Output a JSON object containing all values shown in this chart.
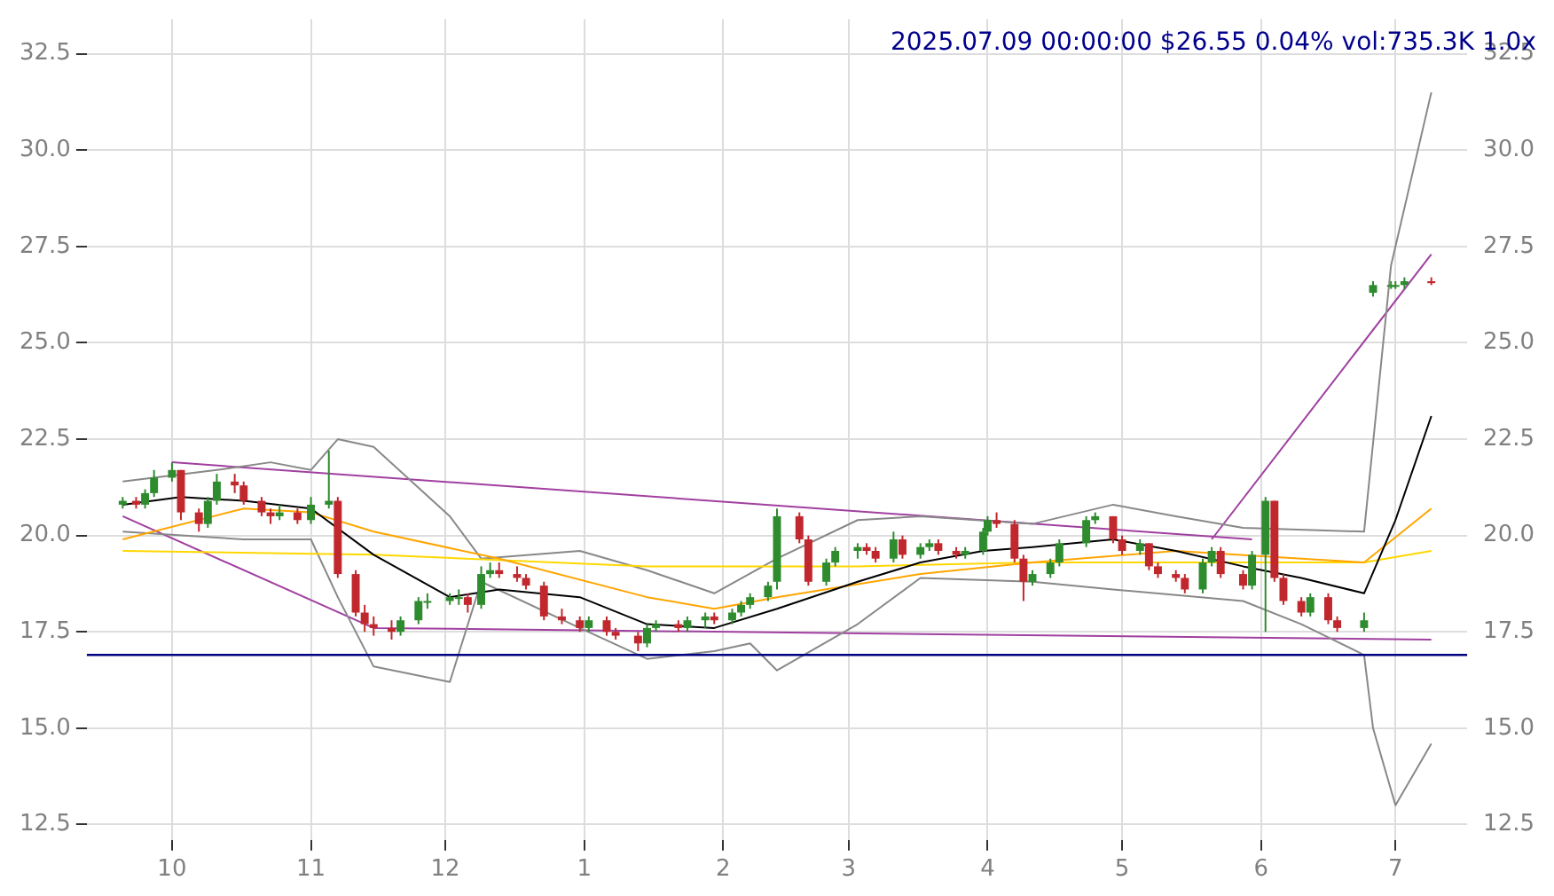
{
  "chart_data": {
    "type": "candlestick",
    "title": "2025.07.09 00:00:00 $26.55 0.04% vol:735.3K 1.0x",
    "x": [
      "2024-09-20",
      "2024-09-23",
      "2024-09-25",
      "2024-09-27",
      "2024-10-01",
      "2024-10-03",
      "2024-10-07",
      "2024-10-09",
      "2024-10-11",
      "2024-10-15",
      "2024-10-17",
      "2024-10-21",
      "2024-10-23",
      "2024-10-25",
      "2024-10-29",
      "2024-11-01",
      "2024-11-05",
      "2024-11-07",
      "2024-11-11",
      "2024-11-13",
      "2024-11-15",
      "2024-11-19",
      "2024-11-21",
      "2024-11-25",
      "2024-11-27",
      "2024-12-02",
      "2024-12-04",
      "2024-12-06",
      "2024-12-09",
      "2024-12-11",
      "2024-12-13",
      "2024-12-17",
      "2024-12-19",
      "2024-12-23",
      "2024-12-27",
      "2024-12-31",
      "2025-01-02",
      "2025-01-06",
      "2025-01-08",
      "2025-01-13",
      "2025-01-15",
      "2025-01-17",
      "2025-01-22",
      "2025-01-24",
      "2025-01-28",
      "2025-01-30",
      "2025-02-03",
      "2025-02-05",
      "2025-02-07",
      "2025-02-11",
      "2025-02-13",
      "2025-02-18",
      "2025-02-20",
      "2025-02-24",
      "2025-02-26",
      "2025-03-03",
      "2025-03-05",
      "2025-03-07",
      "2025-03-11",
      "2025-03-13",
      "2025-03-17",
      "2025-03-19",
      "2025-03-21",
      "2025-03-25",
      "2025-03-27",
      "2025-03-31",
      "2025-04-01",
      "2025-04-03",
      "2025-04-07",
      "2025-04-09",
      "2025-04-11",
      "2025-04-15",
      "2025-04-17",
      "2025-04-23",
      "2025-04-25",
      "2025-04-29",
      "2025-05-01",
      "2025-05-05",
      "2025-05-07",
      "2025-05-09",
      "2025-05-13",
      "2025-05-15",
      "2025-05-19",
      "2025-05-21",
      "2025-05-23",
      "2025-05-28",
      "2025-05-30",
      "2025-06-02",
      "2025-06-04",
      "2025-06-06",
      "2025-06-10",
      "2025-06-12",
      "2025-06-16",
      "2025-06-18",
      "2025-06-24",
      "2025-06-26",
      "2025-06-30",
      "2025-07-01",
      "2025-07-03",
      "2025-07-09"
    ],
    "ohlc": [
      [
        20.8,
        21.0,
        20.7,
        20.9
      ],
      [
        20.9,
        21.0,
        20.7,
        20.8
      ],
      [
        20.8,
        21.2,
        20.7,
        21.1
      ],
      [
        21.1,
        21.7,
        21.0,
        21.5
      ],
      [
        21.5,
        21.9,
        21.4,
        21.7
      ],
      [
        21.7,
        21.7,
        20.4,
        20.6
      ],
      [
        20.6,
        20.7,
        20.1,
        20.3
      ],
      [
        20.3,
        21.0,
        20.2,
        20.9
      ],
      [
        20.9,
        21.6,
        20.8,
        21.4
      ],
      [
        21.4,
        21.6,
        21.1,
        21.3
      ],
      [
        21.3,
        21.4,
        20.8,
        20.9
      ],
      [
        20.9,
        21.0,
        20.5,
        20.6
      ],
      [
        20.6,
        20.7,
        20.3,
        20.5
      ],
      [
        20.5,
        20.8,
        20.4,
        20.6
      ],
      [
        20.6,
        20.7,
        20.3,
        20.4
      ],
      [
        20.4,
        21.0,
        20.3,
        20.8
      ],
      [
        20.8,
        22.2,
        20.7,
        20.9
      ],
      [
        20.9,
        21.0,
        18.9,
        19.0
      ],
      [
        19.0,
        19.1,
        17.9,
        18.0
      ],
      [
        18.0,
        18.2,
        17.5,
        17.7
      ],
      [
        17.7,
        17.9,
        17.4,
        17.6
      ],
      [
        17.6,
        17.8,
        17.3,
        17.5
      ],
      [
        17.5,
        17.9,
        17.4,
        17.8
      ],
      [
        17.8,
        18.4,
        17.7,
        18.3
      ],
      [
        18.3,
        18.5,
        18.1,
        18.3
      ],
      [
        18.3,
        18.5,
        18.2,
        18.4
      ],
      [
        18.4,
        18.6,
        18.2,
        18.4
      ],
      [
        18.4,
        18.5,
        18.0,
        18.2
      ],
      [
        18.2,
        19.2,
        18.1,
        19.0
      ],
      [
        19.0,
        19.3,
        18.9,
        19.1
      ],
      [
        19.1,
        19.3,
        18.9,
        19.0
      ],
      [
        19.0,
        19.2,
        18.8,
        18.9
      ],
      [
        18.9,
        19.0,
        18.6,
        18.7
      ],
      [
        18.7,
        18.8,
        17.8,
        17.9
      ],
      [
        17.9,
        18.1,
        17.7,
        17.8
      ],
      [
        17.8,
        17.9,
        17.5,
        17.6
      ],
      [
        17.6,
        17.9,
        17.5,
        17.8
      ],
      [
        17.8,
        17.9,
        17.4,
        17.5
      ],
      [
        17.5,
        17.6,
        17.3,
        17.4
      ],
      [
        17.4,
        17.5,
        17.0,
        17.2
      ],
      [
        17.2,
        17.7,
        17.1,
        17.6
      ],
      [
        17.6,
        17.8,
        17.5,
        17.7
      ],
      [
        17.7,
        17.8,
        17.5,
        17.6
      ],
      [
        17.6,
        17.9,
        17.5,
        17.8
      ],
      [
        17.8,
        18.0,
        17.6,
        17.9
      ],
      [
        17.9,
        18.0,
        17.7,
        17.8
      ],
      [
        17.8,
        18.1,
        17.7,
        18.0
      ],
      [
        18.0,
        18.3,
        17.9,
        18.2
      ],
      [
        18.2,
        18.5,
        18.1,
        18.4
      ],
      [
        18.4,
        18.8,
        18.3,
        18.7
      ],
      [
        18.8,
        20.7,
        18.6,
        20.5
      ],
      [
        20.5,
        20.6,
        19.8,
        19.9
      ],
      [
        19.9,
        20.0,
        18.7,
        18.8
      ],
      [
        18.8,
        19.4,
        18.7,
        19.3
      ],
      [
        19.3,
        19.7,
        19.2,
        19.6
      ],
      [
        19.6,
        19.8,
        19.4,
        19.7
      ],
      [
        19.7,
        19.8,
        19.5,
        19.6
      ],
      [
        19.6,
        19.7,
        19.3,
        19.4
      ],
      [
        19.4,
        20.1,
        19.3,
        19.9
      ],
      [
        19.9,
        20.0,
        19.4,
        19.5
      ],
      [
        19.5,
        19.8,
        19.4,
        19.7
      ],
      [
        19.7,
        19.9,
        19.6,
        19.8
      ],
      [
        19.8,
        19.9,
        19.5,
        19.6
      ],
      [
        19.6,
        19.7,
        19.4,
        19.5
      ],
      [
        19.5,
        19.7,
        19.4,
        19.6
      ],
      [
        19.6,
        20.2,
        19.5,
        20.1
      ],
      [
        20.1,
        20.5,
        20.0,
        20.4
      ],
      [
        20.4,
        20.6,
        20.2,
        20.3
      ],
      [
        20.3,
        20.4,
        19.3,
        19.4
      ],
      [
        19.4,
        19.5,
        18.3,
        18.8
      ],
      [
        18.8,
        19.1,
        18.7,
        19.0
      ],
      [
        19.0,
        19.4,
        18.9,
        19.3
      ],
      [
        19.3,
        19.9,
        19.2,
        19.8
      ],
      [
        19.8,
        20.5,
        19.7,
        20.4
      ],
      [
        20.4,
        20.6,
        20.3,
        20.5
      ],
      [
        20.5,
        20.5,
        19.8,
        19.9
      ],
      [
        19.9,
        20.0,
        19.5,
        19.6
      ],
      [
        19.6,
        19.9,
        19.5,
        19.8
      ],
      [
        19.8,
        19.8,
        19.1,
        19.2
      ],
      [
        19.2,
        19.3,
        18.9,
        19.0
      ],
      [
        19.0,
        19.1,
        18.8,
        18.9
      ],
      [
        18.9,
        19.0,
        18.5,
        18.6
      ],
      [
        18.6,
        19.4,
        18.5,
        19.3
      ],
      [
        19.3,
        19.7,
        19.2,
        19.6
      ],
      [
        19.6,
        19.7,
        18.9,
        19.0
      ],
      [
        19.0,
        19.1,
        18.6,
        18.7
      ],
      [
        18.7,
        19.6,
        18.6,
        19.5
      ],
      [
        19.5,
        21.0,
        17.5,
        20.9
      ],
      [
        20.9,
        20.9,
        18.8,
        18.9
      ],
      [
        18.9,
        19.0,
        18.2,
        18.3
      ],
      [
        18.3,
        18.4,
        17.9,
        18.0
      ],
      [
        18.0,
        18.5,
        17.9,
        18.4
      ],
      [
        18.4,
        18.5,
        17.7,
        17.8
      ],
      [
        17.8,
        17.9,
        17.5,
        17.6
      ],
      [
        17.6,
        18.0,
        17.5,
        17.8
      ],
      [
        26.3,
        26.6,
        26.2,
        26.5
      ],
      [
        26.5,
        26.6,
        26.4,
        26.5
      ],
      [
        26.5,
        26.6,
        26.4,
        26.5
      ],
      [
        26.5,
        26.7,
        26.4,
        26.6
      ],
      [
        26.6,
        26.7,
        26.5,
        26.55
      ]
    ],
    "series": [
      {
        "type": "line",
        "color": "#000000",
        "x": [
          "2024-09-20",
          "2024-10-03",
          "2024-10-17",
          "2024-11-01",
          "2024-11-15",
          "2024-12-02",
          "2024-12-13",
          "2024-12-31",
          "2025-01-15",
          "2025-01-30",
          "2025-02-13",
          "2025-03-03",
          "2025-03-17",
          "2025-03-31",
          "2025-04-11",
          "2025-04-29",
          "2025-05-13",
          "2025-05-28",
          "2025-06-10",
          "2025-06-24",
          "2025-07-01",
          "2025-07-09"
        ],
        "values": [
          20.8,
          21.0,
          20.9,
          20.7,
          19.5,
          18.4,
          18.6,
          18.4,
          17.7,
          17.6,
          18.1,
          18.8,
          19.3,
          19.6,
          19.7,
          19.9,
          19.6,
          19.2,
          18.9,
          18.5,
          20.4,
          23.1
        ]
      },
      {
        "type": "line",
        "color": "#ffa500",
        "x": [
          "2024-09-20",
          "2024-10-17",
          "2024-11-01",
          "2024-11-15",
          "2024-12-13",
          "2025-01-15",
          "2025-01-30",
          "2025-02-13",
          "2025-03-17",
          "2025-04-11",
          "2025-05-13",
          "2025-06-10",
          "2025-06-24",
          "2025-07-09"
        ],
        "values": [
          19.9,
          20.7,
          20.6,
          20.1,
          19.4,
          18.4,
          18.1,
          18.4,
          19.0,
          19.3,
          19.6,
          19.4,
          19.3,
          20.7
        ]
      },
      {
        "type": "line",
        "color": "#ffd700",
        "x": [
          "2024-09-20",
          "2024-11-15",
          "2025-01-15",
          "2025-03-03",
          "2025-04-11",
          "2025-06-10",
          "2025-06-24",
          "2025-07-09"
        ],
        "values": [
          19.6,
          19.5,
          19.2,
          19.2,
          19.3,
          19.3,
          19.3,
          19.6
        ]
      },
      {
        "type": "line",
        "color": "#888888",
        "x": [
          "2024-09-20",
          "2024-10-11",
          "2024-10-23",
          "2024-11-01",
          "2024-11-07",
          "2024-11-15",
          "2024-12-02",
          "2024-12-09",
          "2024-12-31",
          "2025-01-15",
          "2025-01-30",
          "2025-02-13",
          "2025-03-03",
          "2025-03-17",
          "2025-04-11",
          "2025-04-29",
          "2025-05-13",
          "2025-05-28",
          "2025-06-24",
          "2025-06-30",
          "2025-07-09"
        ],
        "values": [
          21.4,
          21.7,
          21.9,
          21.7,
          22.5,
          22.3,
          20.5,
          19.4,
          19.6,
          19.1,
          18.5,
          19.4,
          20.4,
          20.5,
          20.3,
          20.8,
          20.5,
          20.2,
          20.1,
          27.0,
          31.5
        ]
      },
      {
        "type": "line",
        "color": "#888888",
        "x": [
          "2024-09-20",
          "2024-10-17",
          "2024-11-01",
          "2024-11-07",
          "2024-11-15",
          "2024-12-02",
          "2024-12-09",
          "2024-12-31",
          "2025-01-15",
          "2025-01-30",
          "2025-02-07",
          "2025-02-13",
          "2025-03-03",
          "2025-03-17",
          "2025-04-11",
          "2025-04-29",
          "2025-05-28",
          "2025-06-10",
          "2025-06-24",
          "2025-06-26",
          "2025-07-01",
          "2025-07-09"
        ],
        "values": [
          20.1,
          19.9,
          19.9,
          18.4,
          16.6,
          16.2,
          18.8,
          17.6,
          16.8,
          17.0,
          17.2,
          16.5,
          17.7,
          18.9,
          18.8,
          18.6,
          18.3,
          17.7,
          16.9,
          15.0,
          13.0,
          14.6
        ]
      },
      {
        "type": "line",
        "color": "#a040a0",
        "x": [
          "2024-10-01",
          "2025-05-30"
        ],
        "values": [
          21.9,
          19.9
        ]
      },
      {
        "type": "line",
        "color": "#a040a0",
        "x": [
          "2024-09-20",
          "2024-11-15",
          "2025-07-09"
        ],
        "values": [
          20.5,
          17.6,
          17.3
        ]
      },
      {
        "type": "line",
        "color": "#a040a0",
        "x": [
          "2025-05-21",
          "2025-07-09"
        ],
        "values": [
          19.9,
          27.3
        ]
      }
    ],
    "xlim": [
      "2024-09-12",
      "2025-07-17"
    ],
    "xticks": [
      {
        "value": "2024-10-01",
        "label": "10"
      },
      {
        "value": "2024-11-01",
        "label": "11"
      },
      {
        "value": "2024-12-01",
        "label": "12"
      },
      {
        "value": "2025-01-01",
        "label": "1"
      },
      {
        "value": "2025-02-01",
        "label": "2"
      },
      {
        "value": "2025-03-01",
        "label": "3"
      },
      {
        "value": "2025-04-01",
        "label": "4"
      },
      {
        "value": "2025-05-01",
        "label": "5"
      },
      {
        "value": "2025-06-01",
        "label": "6"
      },
      {
        "value": "2025-07-01",
        "label": "7"
      }
    ],
    "ylim": [
      12.1,
      33.4
    ],
    "yticks": [
      12.5,
      {
        "value": 15,
        "label": "15.0"
      },
      17.5,
      {
        "value": 20,
        "label": "20.0"
      },
      22.5,
      {
        "value": 25,
        "label": "25.0"
      },
      27.5,
      {
        "value": 30,
        "label": "30.0"
      },
      32.5
    ],
    "y2lim": [
      12.1,
      33.4
    ],
    "y2ticks": [
      12.5,
      {
        "value": 15,
        "label": "15.0"
      },
      17.5,
      {
        "value": 20,
        "label": "20.0"
      },
      22.5,
      {
        "value": 25,
        "label": "25.0"
      },
      27.5,
      {
        "value": 30,
        "label": "30.0"
      },
      32.5
    ],
    "ref_lines": [
      {
        "axis": "y",
        "value": 16.9,
        "color": "#000080"
      }
    ],
    "grid": true,
    "legend": false
  }
}
